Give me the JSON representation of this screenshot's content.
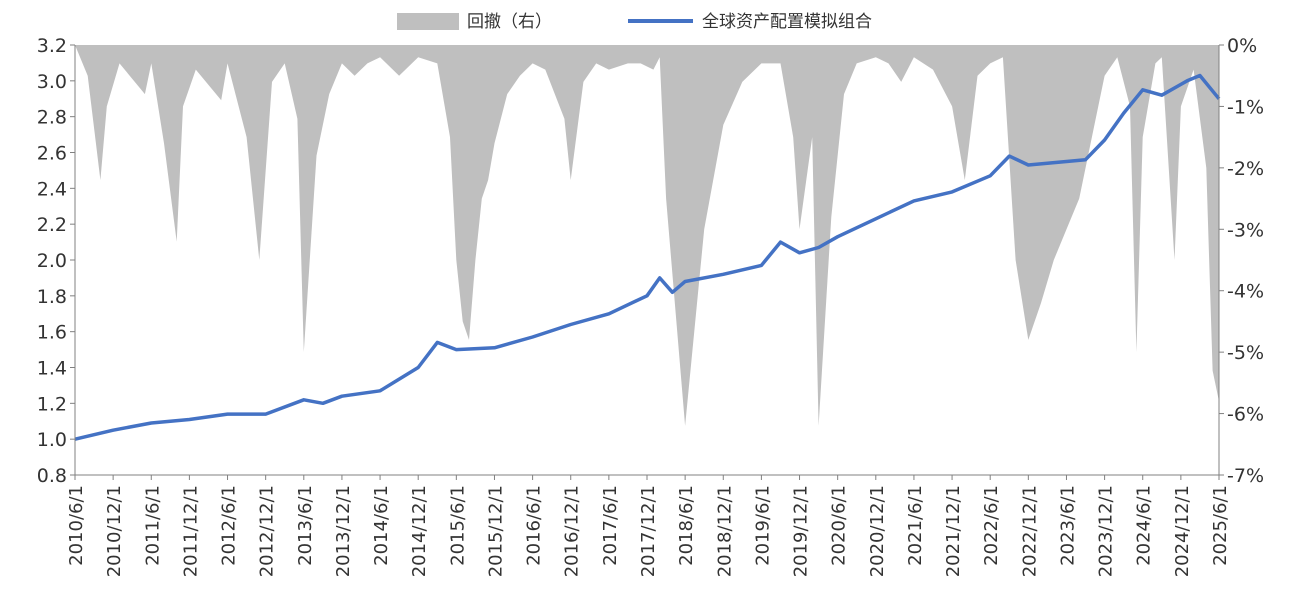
{
  "chart_data": {
    "type": "line",
    "title": "",
    "xlabel": "",
    "ylabel": "",
    "legend_position": "top-center",
    "grid": false,
    "legend": [
      {
        "name": "回撤（右）",
        "kind": "area",
        "color": "#bfbfbf"
      },
      {
        "name": "全球资产配置模拟组合",
        "kind": "line",
        "color": "#4472c4"
      }
    ],
    "y_left": {
      "min": 0.8,
      "max": 3.2,
      "ticks": [
        "3.2",
        "3.0",
        "2.8",
        "2.6",
        "2.4",
        "2.2",
        "2.0",
        "1.8",
        "1.6",
        "1.4",
        "1.2",
        "1.0",
        "0.8"
      ]
    },
    "y_right": {
      "min": -7,
      "max": 0,
      "ticks": [
        "0%",
        "-1%",
        "-2%",
        "-3%",
        "-4%",
        "-5%",
        "-6%",
        "-7%"
      ]
    },
    "x_ticks": [
      "2010/6/1",
      "2010/12/1",
      "2011/6/1",
      "2011/12/1",
      "2012/6/1",
      "2012/12/1",
      "2013/6/1",
      "2013/12/1",
      "2014/6/1",
      "2014/12/1",
      "2015/6/1",
      "2015/12/1",
      "2016/6/1",
      "2016/12/1",
      "2017/6/1",
      "2017/12/1",
      "2018/6/1",
      "2018/12/1",
      "2019/6/1",
      "2019/12/1",
      "2020/6/1",
      "2020/12/1",
      "2021/6/1",
      "2021/12/1",
      "2022/6/1",
      "2022/12/1",
      "2023/6/1",
      "2023/12/1",
      "2024/6/1",
      "2024/12/1",
      "2025/6/1"
    ],
    "series": [
      {
        "name": "全球资产配置模拟组合",
        "axis": "left",
        "x": [
          "2010-06",
          "2010-12",
          "2011-06",
          "2011-12",
          "2012-06",
          "2012-12",
          "2013-06",
          "2013-09",
          "2013-12",
          "2014-06",
          "2014-12",
          "2015-03",
          "2015-06",
          "2015-12",
          "2016-06",
          "2016-12",
          "2017-06",
          "2017-12",
          "2018-02",
          "2018-04",
          "2018-06",
          "2018-12",
          "2019-06",
          "2019-09",
          "2019-12",
          "2020-03",
          "2020-06",
          "2020-12",
          "2021-06",
          "2021-12",
          "2022-06",
          "2022-09",
          "2022-12",
          "2023-06",
          "2023-09",
          "2023-12",
          "2024-03",
          "2024-06",
          "2024-09",
          "2024-12",
          "2025-01",
          "2025-03",
          "2025-06"
        ],
        "values": [
          1.0,
          1.05,
          1.09,
          1.11,
          1.14,
          1.14,
          1.22,
          1.2,
          1.24,
          1.27,
          1.4,
          1.54,
          1.5,
          1.51,
          1.57,
          1.64,
          1.7,
          1.8,
          1.9,
          1.82,
          1.88,
          1.92,
          1.97,
          2.1,
          2.04,
          2.07,
          2.13,
          2.23,
          2.33,
          2.38,
          2.47,
          2.58,
          2.53,
          2.55,
          2.56,
          2.67,
          2.82,
          2.95,
          2.92,
          2.98,
          3.0,
          3.03,
          2.9
        ]
      },
      {
        "name": "回撤（右）",
        "axis": "right",
        "type": "area",
        "x": [
          "2010-06",
          "2010-08",
          "2010-10",
          "2010-11",
          "2011-01",
          "2011-05",
          "2011-06",
          "2011-08",
          "2011-10",
          "2011-11",
          "2012-01",
          "2012-05",
          "2012-06",
          "2012-09",
          "2012-11",
          "2013-01",
          "2013-03",
          "2013-05",
          "2013-06",
          "2013-08",
          "2013-10",
          "2013-12",
          "2014-02",
          "2014-04",
          "2014-06",
          "2014-09",
          "2014-12",
          "2015-03",
          "2015-05",
          "2015-06",
          "2015-07",
          "2015-08",
          "2015-09",
          "2015-10",
          "2015-11",
          "2015-12",
          "2016-02",
          "2016-04",
          "2016-06",
          "2016-08",
          "2016-11",
          "2016-12",
          "2017-02",
          "2017-04",
          "2017-06",
          "2017-09",
          "2017-11",
          "2018-01",
          "2018-02",
          "2018-03",
          "2018-06",
          "2018-09",
          "2018-12",
          "2019-03",
          "2019-06",
          "2019-09",
          "2019-11",
          "2019-12",
          "2020-02",
          "2020-03",
          "2020-05",
          "2020-07",
          "2020-09",
          "2020-12",
          "2021-02",
          "2021-04",
          "2021-06",
          "2021-09",
          "2021-12",
          "2022-02",
          "2022-04",
          "2022-06",
          "2022-08",
          "2022-10",
          "2022-12",
          "2023-02",
          "2023-04",
          "2023-06",
          "2023-08",
          "2023-10",
          "2023-12",
          "2024-02",
          "2024-04",
          "2024-05",
          "2024-06",
          "2024-08",
          "2024-09",
          "2024-11",
          "2024-12",
          "2025-02",
          "2025-04",
          "2025-05",
          "2025-06"
        ],
        "values": [
          0.0,
          -0.5,
          -2.2,
          -1.0,
          -0.3,
          -0.8,
          -0.3,
          -1.6,
          -3.2,
          -1.0,
          -0.4,
          -0.9,
          -0.3,
          -1.5,
          -3.5,
          -0.6,
          -0.3,
          -1.2,
          -5.0,
          -1.8,
          -0.8,
          -0.3,
          -0.5,
          -0.3,
          -0.2,
          -0.5,
          -0.2,
          -0.3,
          -1.5,
          -3.5,
          -4.5,
          -4.8,
          -3.5,
          -2.5,
          -2.2,
          -1.6,
          -0.8,
          -0.5,
          -0.3,
          -0.4,
          -1.2,
          -2.2,
          -0.6,
          -0.3,
          -0.4,
          -0.3,
          -0.3,
          -0.4,
          -0.2,
          -2.5,
          -6.2,
          -3.0,
          -1.3,
          -0.6,
          -0.3,
          -0.3,
          -1.5,
          -3.0,
          -1.5,
          -6.2,
          -2.8,
          -0.8,
          -0.3,
          -0.2,
          -0.3,
          -0.6,
          -0.2,
          -0.4,
          -1.0,
          -2.2,
          -0.5,
          -0.3,
          -0.2,
          -3.5,
          -4.8,
          -4.2,
          -3.5,
          -3.0,
          -2.5,
          -1.5,
          -0.5,
          -0.2,
          -1.0,
          -5.0,
          -1.5,
          -0.3,
          -0.2,
          -3.5,
          -1.0,
          -0.4,
          -2.0,
          -5.3,
          -5.8
        ]
      }
    ]
  }
}
